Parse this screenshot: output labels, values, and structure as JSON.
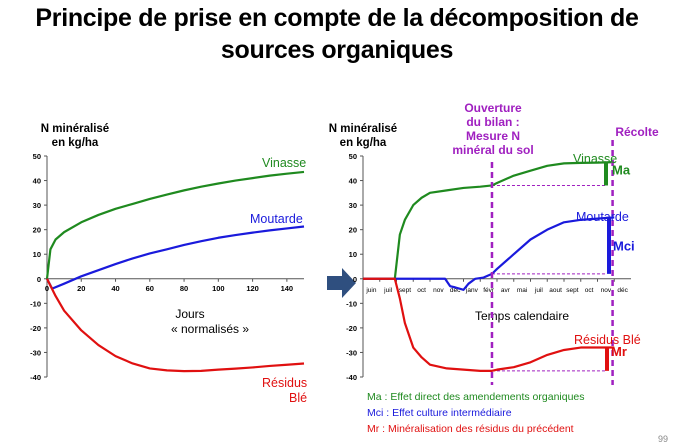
{
  "title": {
    "line1": "Principe de prise en compte de la décomposition de",
    "line2": "sources organiques"
  },
  "colors": {
    "vinasse": "#1f8a1f",
    "moutarde": "#1a1adc",
    "residus": "#e01010",
    "marker": "#a020c0",
    "arrow": "#2f4f7f"
  },
  "chart_data": [
    {
      "type": "line",
      "ylabel": "N minéralisé en kg/ha",
      "ylabel_lines": [
        "N minéralisé",
        "en kg/ha"
      ],
      "xlabel_lines": [
        "Jours",
        "« normalisés »"
      ],
      "xlim": [
        0,
        150
      ],
      "ylim": [
        -40,
        50
      ],
      "xticks": [
        "0",
        "20",
        "40",
        "60",
        "80",
        "100",
        "120",
        "140"
      ],
      "yticks": [
        "50",
        "40",
        "30",
        "20",
        "10",
        "0",
        "-10",
        "-20",
        "-30",
        "-40"
      ],
      "series": [
        {
          "name": "Vinasse",
          "x": [
            0,
            2,
            5,
            10,
            20,
            30,
            40,
            50,
            60,
            70,
            80,
            90,
            100,
            110,
            120,
            130,
            140,
            150
          ],
          "values": [
            0,
            12,
            16,
            19,
            23,
            26,
            28.5,
            30.5,
            32.5,
            34.3,
            36,
            37.5,
            38.8,
            40,
            41,
            42,
            42.8,
            43.5
          ]
        },
        {
          "name": "Moutarde",
          "x": [
            0,
            3,
            10,
            20,
            30,
            40,
            50,
            60,
            70,
            80,
            90,
            100,
            110,
            120,
            130,
            140,
            150
          ],
          "values": [
            0,
            -4,
            -2,
            1,
            3.5,
            6,
            8.3,
            10.3,
            12,
            13.8,
            15.3,
            16.7,
            17.8,
            18.8,
            19.7,
            20.5,
            21.3
          ]
        },
        {
          "name": "Résidus Blé",
          "name_lines": [
            "Résidus",
            "Blé"
          ],
          "x": [
            0,
            5,
            10,
            20,
            30,
            40,
            50,
            60,
            70,
            80,
            90,
            100,
            110,
            120,
            130,
            140,
            150
          ],
          "values": [
            0,
            -7,
            -13,
            -21,
            -27,
            -31.5,
            -34.5,
            -36.5,
            -37.3,
            -37.6,
            -37.5,
            -37,
            -36.6,
            -36.1,
            -35.5,
            -35,
            -34.5
          ]
        }
      ]
    },
    {
      "type": "line",
      "ylabel": "N minéralisé en kg/ha",
      "ylabel_lines": [
        "N minéralisé",
        "en kg/ha"
      ],
      "xlabel": "Temps calendaire",
      "xlim": [
        0,
        16
      ],
      "ylim": [
        -40,
        50
      ],
      "xticks": [
        "juin",
        "juil",
        "sept",
        "oct",
        "nov",
        "déc",
        "janv",
        "févr",
        "avr",
        "mai",
        "juil",
        "aout",
        "sept",
        "oct",
        "nov",
        "déc"
      ],
      "yticks": [
        "50",
        "40",
        "30",
        "20",
        "10",
        "0",
        "-10",
        "-20",
        "-30",
        "-40"
      ],
      "annotations": {
        "ouverture_lines": [
          "Ouverture",
          "du bilan :",
          "Mesure N",
          "minéral du sol"
        ],
        "recolte": "Récolte",
        "ma": "Ma",
        "mci": "Mci",
        "mr": "Mr"
      },
      "series": [
        {
          "name": "Vinasse",
          "x": [
            0,
            1.9,
            2.2,
            2.5,
            3,
            3.5,
            4,
            5,
            6,
            7,
            7.7,
            8,
            9,
            10,
            11,
            12,
            13,
            14,
            15
          ],
          "values": [
            0,
            0,
            18,
            24,
            30,
            33,
            35,
            36,
            37,
            37.5,
            38,
            39,
            42,
            44,
            46,
            47,
            47.2,
            47.3,
            47.5
          ]
        },
        {
          "name": "Moutarde",
          "x": [
            0,
            4.9,
            5.2,
            5.5,
            6,
            6.3,
            6.7,
            7.2,
            7.7,
            8,
            9,
            10,
            11,
            12,
            13,
            14,
            15
          ],
          "values": [
            0,
            0,
            -3,
            -3.5,
            -4.5,
            -2,
            0,
            0.5,
            2,
            4,
            10,
            16,
            20,
            23,
            24,
            24.5,
            25
          ]
        },
        {
          "name": "Résidus Blé",
          "x": [
            0,
            1.9,
            2.2,
            2.5,
            3,
            3.5,
            4,
            5,
            6,
            7,
            7.7,
            8,
            9,
            10,
            11,
            12,
            13,
            14,
            15
          ],
          "values": [
            0,
            0,
            -8,
            -18,
            -28,
            -32,
            -35,
            -36.5,
            -37,
            -37.5,
            -37.5,
            -37,
            -36,
            -34,
            -31,
            -29,
            -28,
            -28,
            -28
          ]
        }
      ]
    }
  ],
  "legend": {
    "ma": "Ma : Effet direct des amendements organiques",
    "mci": "Mci : Effet culture intermédiaire",
    "mr": "Mr : Minéralisation des résidus du précédent"
  },
  "page_number": "99"
}
